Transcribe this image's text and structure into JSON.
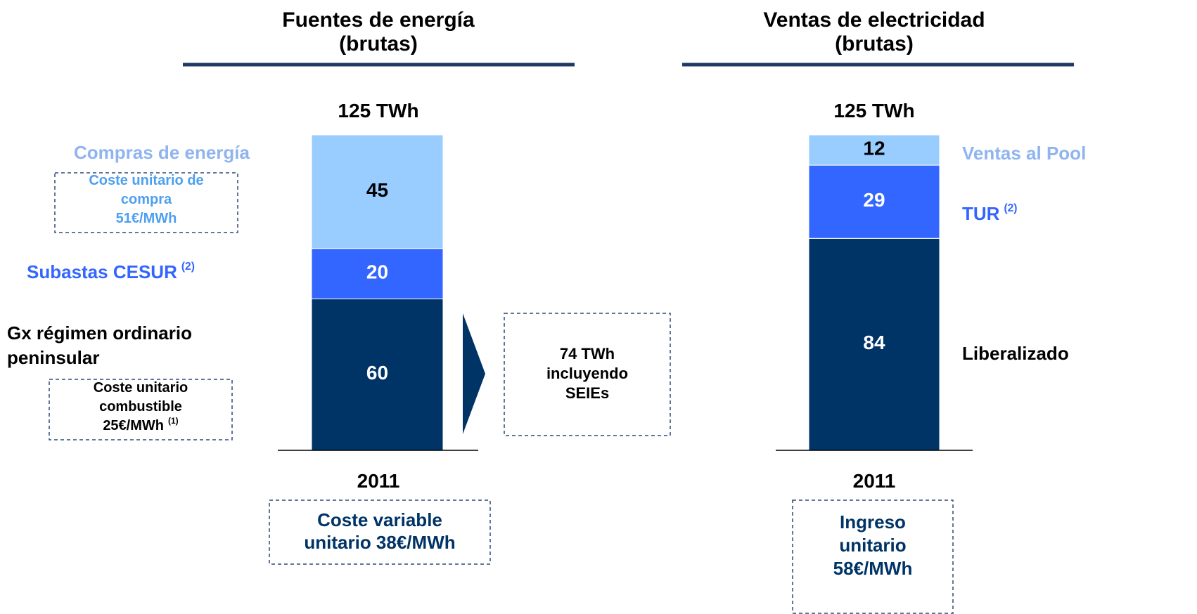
{
  "chart_data": [
    {
      "type": "stacked_bar",
      "title": "Fuentes de energía",
      "subtitle": "(brutas)",
      "total_label": "125 TWh",
      "categories": [
        "2011"
      ],
      "series": [
        {
          "name": [
            "Gx régimen ordinario",
            "peninsular"
          ],
          "color": "#003366",
          "values": [
            60
          ],
          "box": {
            "lines": [
              "Coste unitario",
              "combustible",
              "25€/MWh"
            ],
            "sup": "(1)"
          }
        },
        {
          "name": [
            "Subastas CESUR"
          ],
          "sup": "(2)",
          "color": "#3366ff",
          "values": [
            20
          ]
        },
        {
          "name": [
            "Compras de energía"
          ],
          "color": "#99ccff",
          "values": [
            45
          ],
          "box": {
            "lines": [
              "Coste unitario de",
              "compra",
              "51€/MWh"
            ]
          }
        }
      ],
      "callout": [
        "74 TWh",
        "incluyendo",
        "SEIEs"
      ],
      "footer": [
        "Coste variable",
        "unitario 38€/MWh"
      ]
    },
    {
      "type": "stacked_bar",
      "title": "Ventas de electricidad",
      "subtitle": "(brutas)",
      "total_label": "125 TWh",
      "categories": [
        "2011"
      ],
      "series": [
        {
          "name": [
            "Liberalizado"
          ],
          "color": "#003366",
          "values": [
            84
          ]
        },
        {
          "name": [
            "TUR"
          ],
          "sup": "(2)",
          "color": "#3366ff",
          "values": [
            29
          ]
        },
        {
          "name": [
            "Ventas al Pool"
          ],
          "color": "#99ccff",
          "values": [
            12
          ]
        }
      ],
      "footer": [
        "Ingreso",
        "unitario",
        "58€/MWh"
      ]
    }
  ]
}
